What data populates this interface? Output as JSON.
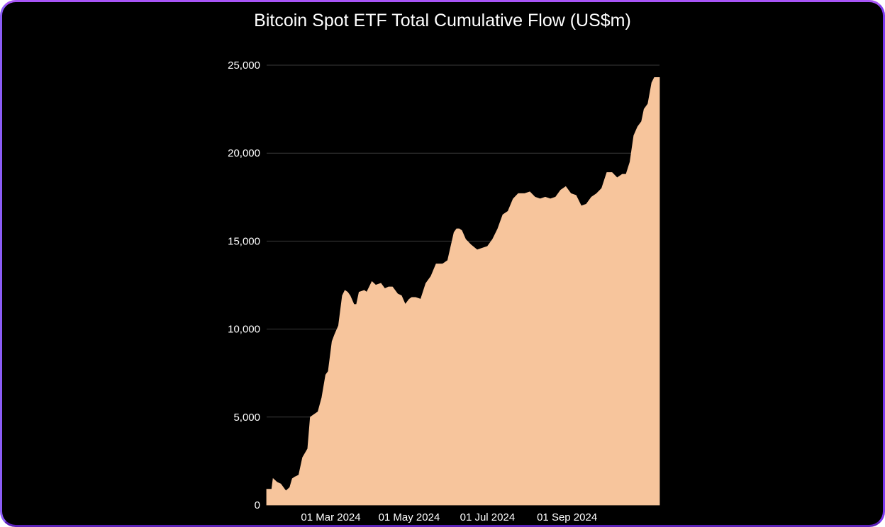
{
  "chart_data": {
    "type": "area",
    "title": "Bitcoin Spot ETF Total Cumulative Flow (US$m)",
    "xlabel": "",
    "ylabel": "",
    "x_range": [
      "2024-01-11",
      "2024-11-12"
    ],
    "ylim": [
      0,
      25000
    ],
    "y_ticks": [
      0,
      5000,
      10000,
      15000,
      20000,
      25000
    ],
    "y_tick_labels": [
      "0",
      "5,000",
      "10,000",
      "15,000",
      "20,000",
      "25,000"
    ],
    "x_ticks": [
      "2024-03-01",
      "2024-05-01",
      "2024-07-01",
      "2024-09-01"
    ],
    "x_tick_labels": [
      "01 Mar 2024",
      "01 May 2024",
      "01 Jul 2024",
      "01 Sep 2024"
    ],
    "grid": true,
    "fill_color": "#f7c59c",
    "series": [
      {
        "x": [
          "2024-01-11",
          "2024-01-15",
          "2024-01-16",
          "2024-01-19",
          "2024-01-22",
          "2024-01-25",
          "2024-01-26",
          "2024-01-29",
          "2024-01-31",
          "2024-02-02",
          "2024-02-05",
          "2024-02-08",
          "2024-02-12",
          "2024-02-14",
          "2024-02-16",
          "2024-02-20",
          "2024-02-23",
          "2024-02-26",
          "2024-02-28",
          "2024-03-02",
          "2024-03-04",
          "2024-03-07",
          "2024-03-10",
          "2024-03-12",
          "2024-03-14",
          "2024-03-16",
          "2024-03-19",
          "2024-03-21",
          "2024-03-23",
          "2024-03-27",
          "2024-03-29",
          "2024-04-02",
          "2024-04-05",
          "2024-04-09",
          "2024-04-12",
          "2024-04-15",
          "2024-04-18",
          "2024-04-22",
          "2024-04-25",
          "2024-04-28",
          "2024-05-01",
          "2024-05-03",
          "2024-05-06",
          "2024-05-10",
          "2024-05-14",
          "2024-05-18",
          "2024-05-22",
          "2024-05-27",
          "2024-05-31",
          "2024-06-05",
          "2024-06-07",
          "2024-06-09",
          "2024-06-11",
          "2024-06-14",
          "2024-06-18",
          "2024-06-23",
          "2024-06-27",
          "2024-07-01",
          "2024-07-05",
          "2024-07-09",
          "2024-07-13",
          "2024-07-17",
          "2024-07-21",
          "2024-07-25",
          "2024-07-30",
          "2024-08-03",
          "2024-08-07",
          "2024-08-11",
          "2024-08-15",
          "2024-08-19",
          "2024-08-23",
          "2024-08-27",
          "2024-08-31",
          "2024-09-04",
          "2024-09-08",
          "2024-09-12",
          "2024-09-16",
          "2024-09-20",
          "2024-09-24",
          "2024-09-28",
          "2024-10-02",
          "2024-10-06",
          "2024-10-10",
          "2024-10-14",
          "2024-10-17",
          "2024-10-20",
          "2024-10-23",
          "2024-10-26",
          "2024-10-29",
          "2024-10-31",
          "2024-11-03",
          "2024-11-06",
          "2024-11-08",
          "2024-11-11",
          "2024-11-12"
        ],
        "values": [
          900,
          900,
          1500,
          1300,
          1200,
          900,
          800,
          1000,
          1500,
          1600,
          1700,
          2700,
          3200,
          5000,
          5100,
          5300,
          6100,
          7400,
          7600,
          9300,
          9700,
          10200,
          11900,
          12200,
          12100,
          11900,
          11400,
          11400,
          12100,
          12200,
          12100,
          12700,
          12500,
          12600,
          12300,
          12400,
          12400,
          12000,
          11900,
          11400,
          11700,
          11800,
          11800,
          11700,
          12600,
          13000,
          13700,
          13700,
          13900,
          15500,
          15700,
          15700,
          15600,
          15100,
          14800,
          14500,
          14600,
          14700,
          15100,
          15700,
          16500,
          16700,
          17400,
          17700,
          17700,
          17800,
          17500,
          17400,
          17500,
          17400,
          17500,
          17900,
          18100,
          17700,
          17600,
          17000,
          17100,
          17500,
          17700,
          18000,
          18900,
          18900,
          18600,
          18800,
          18800,
          19500,
          21000,
          21500,
          21800,
          22500,
          22800,
          24000,
          24300,
          24300,
          24300
        ]
      }
    ]
  }
}
